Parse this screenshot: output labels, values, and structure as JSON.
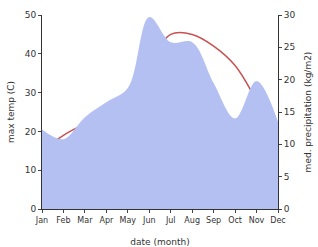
{
  "chart_data": {
    "type": "line",
    "x_label": "date (month)",
    "y_label": "max temp (C)",
    "y2_label": "med. precipitation (kg/m2)",
    "categories": [
      "Jan",
      "Feb",
      "Mar",
      "Apr",
      "May",
      "Jun",
      "Jul",
      "Aug",
      "Sep",
      "Oct",
      "Nov",
      "Dec"
    ],
    "series": [
      {
        "name": "med. precipitation (kg/m2)",
        "type": "area",
        "axis": "y2",
        "color": "#b4c0f2",
        "values": [
          12.3,
          10.8,
          14.2,
          16.5,
          18.7,
          29.7,
          25.8,
          25.8,
          19.5,
          14,
          19.8,
          13.5
        ]
      },
      {
        "name": "max temp (C)",
        "type": "line",
        "color": "#c8504f",
        "values": [
          15,
          19,
          22,
          25,
          29,
          38,
          45,
          45,
          42,
          37,
          28,
          18
        ]
      }
    ],
    "ylim": [
      0,
      50
    ],
    "yticks": [
      0,
      10,
      20,
      30,
      40,
      50
    ],
    "y2lim": [
      0,
      30
    ],
    "y2ticks": [
      0,
      5,
      10,
      15,
      20,
      25,
      30
    ],
    "grid": false
  }
}
